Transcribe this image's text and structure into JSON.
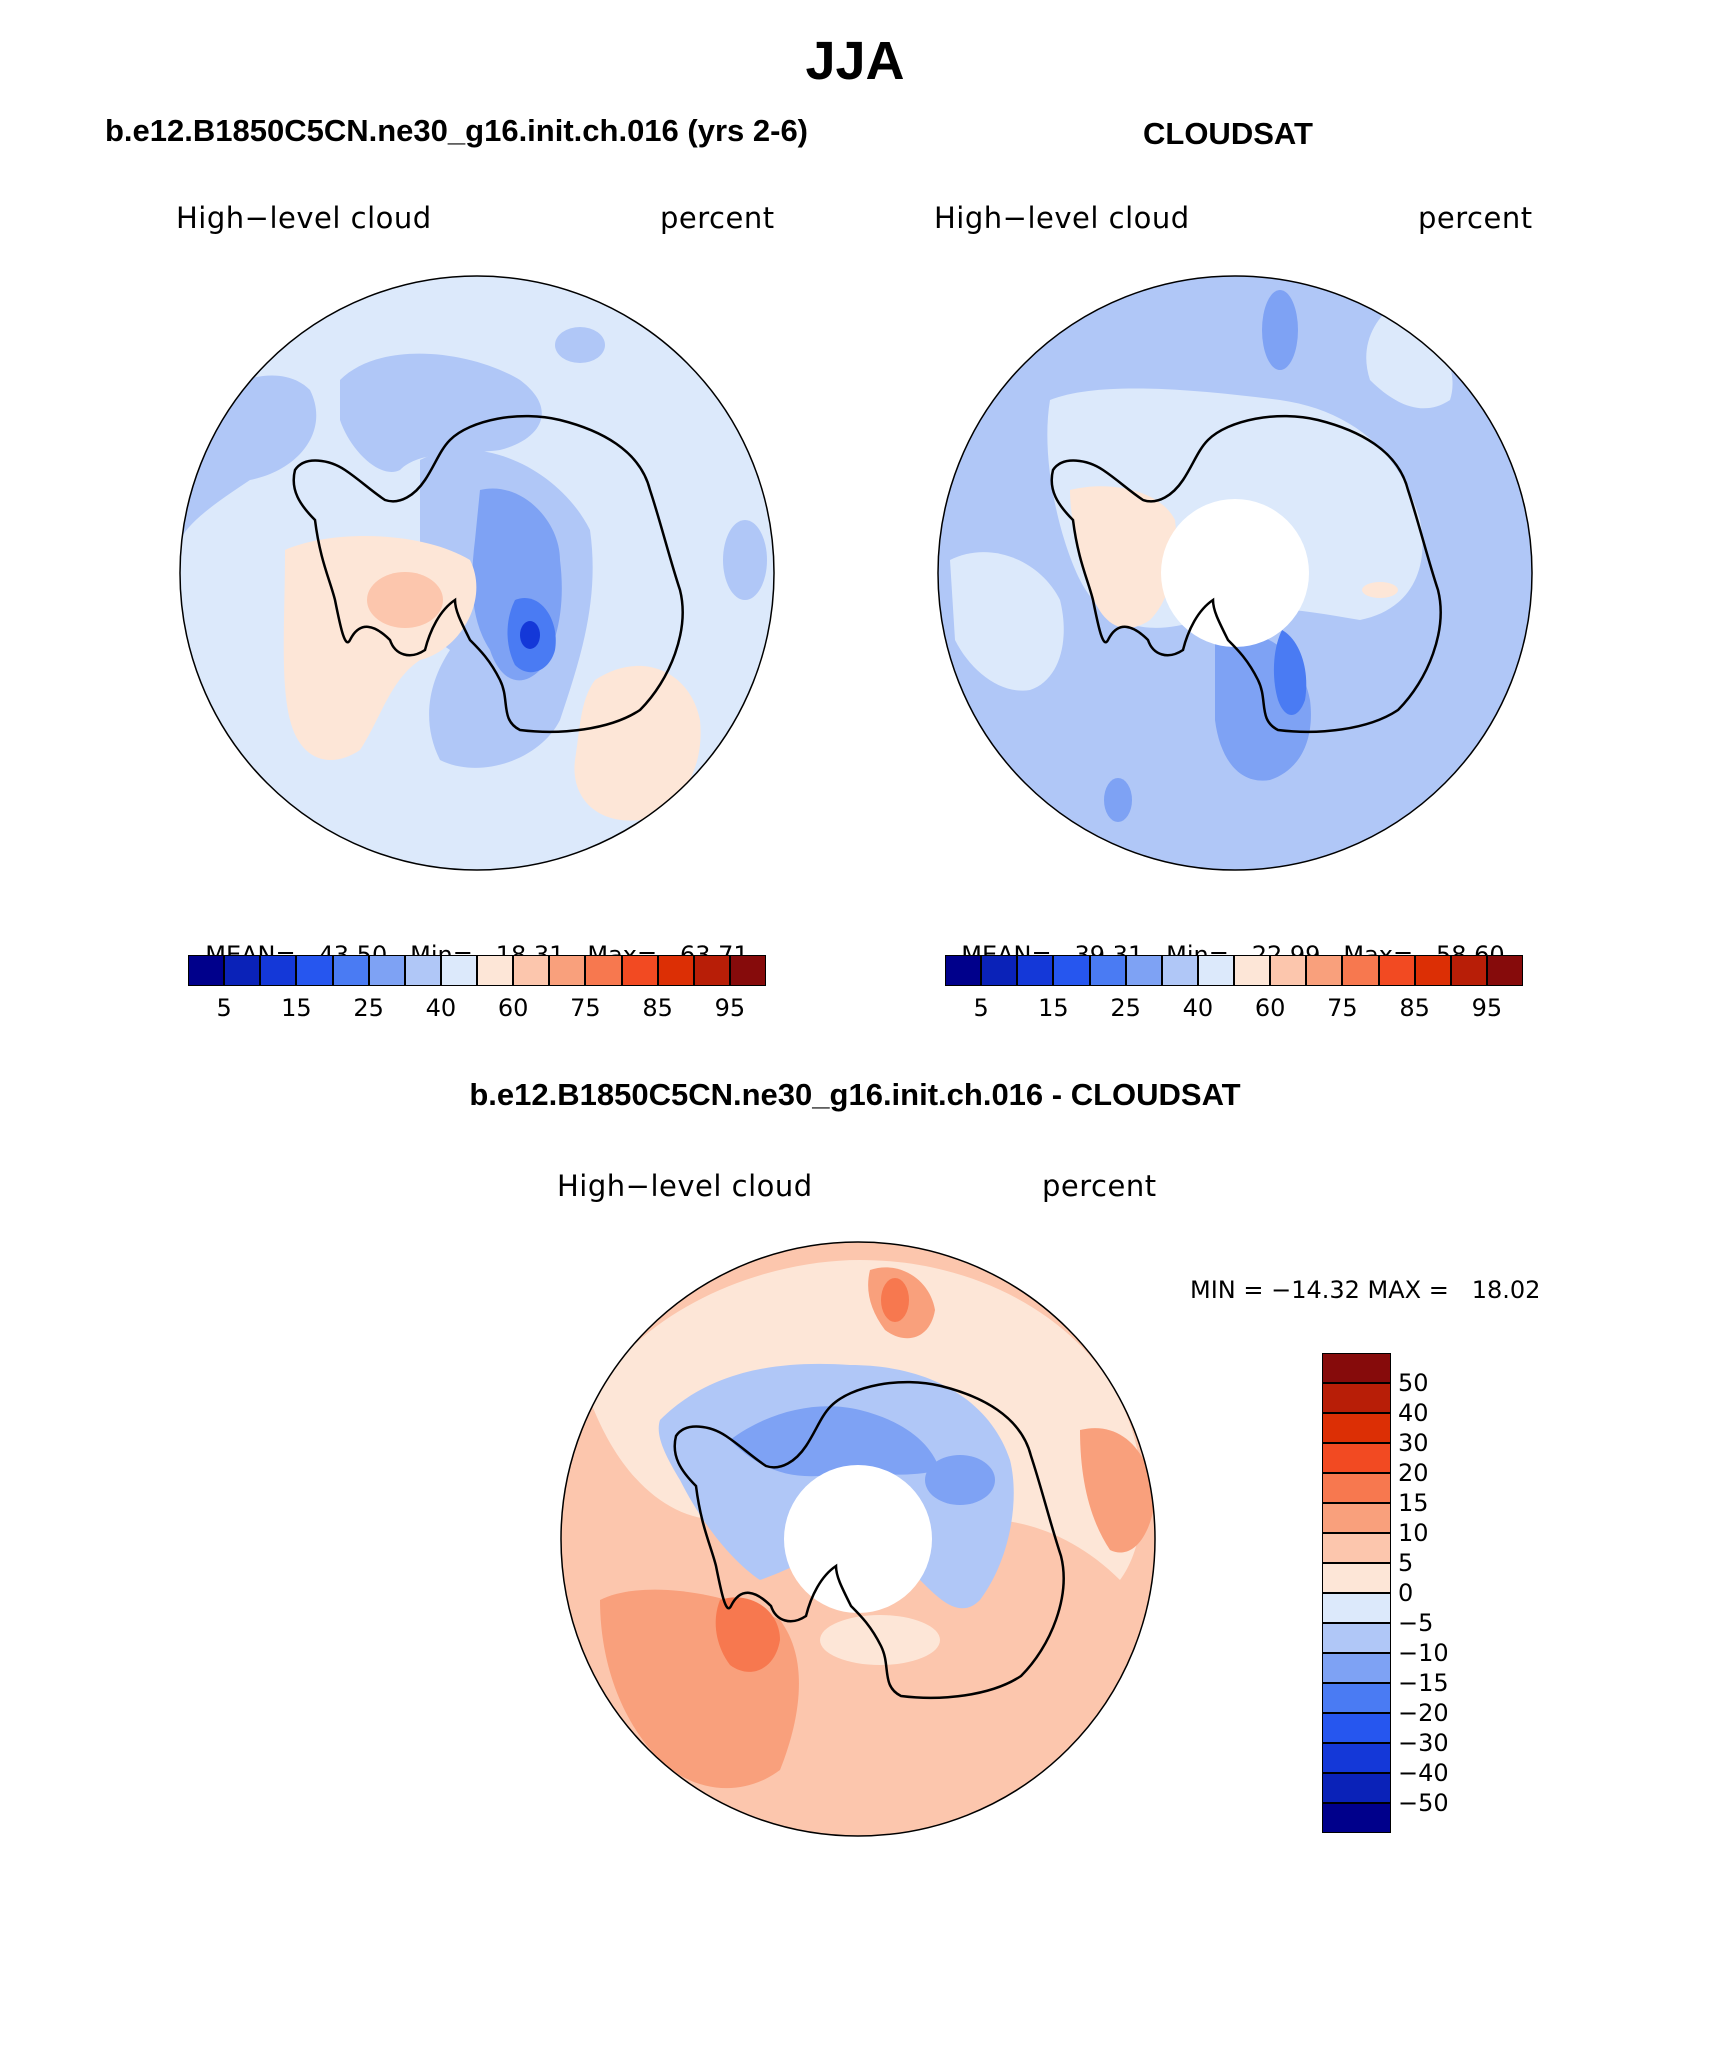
{
  "title": "JJA",
  "panels": [
    {
      "id": "model",
      "heading": "b.e12.B1850C5CN.ne30_g16.init.ch.016 (yrs 2-6)",
      "field_label": "High−level cloud",
      "units_label": "percent",
      "stats": {
        "mean_label": "MEAN=",
        "mean": "43.50",
        "min_label": "Min=",
        "min": "18.31",
        "max_label": "Max=",
        "max": "63.71"
      },
      "pole_hole": false
    },
    {
      "id": "obs",
      "heading": "CLOUDSAT",
      "field_label": "High−level cloud",
      "units_label": "percent",
      "stats": {
        "mean_label": "MEAN=",
        "mean": "39.31",
        "min_label": "Min=",
        "min": "22.99",
        "max_label": "Max=",
        "max": "58.60"
      },
      "pole_hole": true
    }
  ],
  "abs_colorbar": {
    "colors": [
      "#00008b",
      "#0a22b8",
      "#1438d8",
      "#2656ef",
      "#4a7bf3",
      "#7ea2f4",
      "#b0c7f7",
      "#dce9fb",
      "#fde6d7",
      "#fcc6ad",
      "#f9a07c",
      "#f7784f",
      "#f24a22",
      "#dc2f05",
      "#b81e07",
      "#860b0b"
    ],
    "tick_labels": [
      "5",
      "15",
      "25",
      "40",
      "60",
      "75",
      "85",
      "95"
    ]
  },
  "diff_panel": {
    "heading": "b.e12.B1850C5CN.ne30_g16.init.ch.016 - CLOUDSAT",
    "field_label": "High−level cloud",
    "units_label": "percent",
    "minmax_text": "MIN = −14.32 MAX =   18.02",
    "pole_hole": true
  },
  "diff_colorbar": {
    "colors_top_to_bottom": [
      "#860b0b",
      "#b81e07",
      "#dc2f05",
      "#f24a22",
      "#f7784f",
      "#f9a07c",
      "#fcc6ad",
      "#fde6d7",
      "#dce9fb",
      "#b0c7f7",
      "#7ea2f4",
      "#4a7bf3",
      "#2656ef",
      "#1438d8",
      "#0a22b8",
      "#00008b"
    ],
    "tick_labels": [
      "50",
      "40",
      "30",
      "20",
      "15",
      "10",
      "5",
      "0",
      "−5",
      "−10",
      "−15",
      "−20",
      "−30",
      "−40",
      "−50"
    ]
  },
  "colors": {
    "light_blue": "#dce9fb",
    "mid_blue": "#b0c7f7",
    "blue": "#7ea2f4",
    "deep_blue": "#2656ef",
    "peach": "#fde6d7",
    "salmon": "#fcc6ad",
    "orange": "#f9a07c",
    "red_orange": "#f7784f"
  }
}
